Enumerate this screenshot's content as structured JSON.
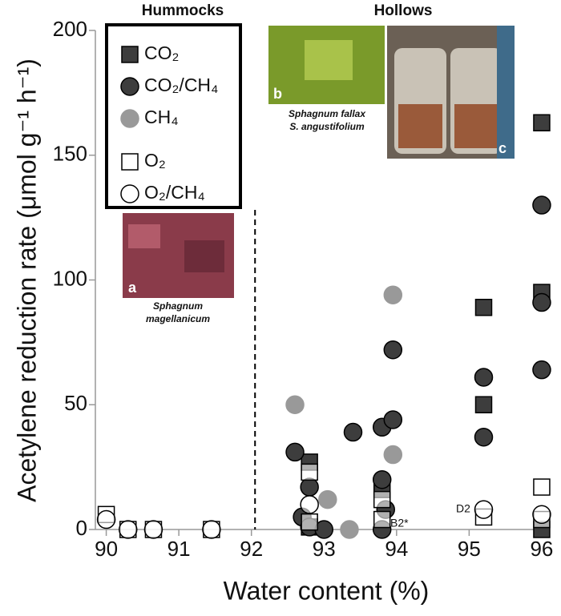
{
  "chart_data": {
    "type": "scatter",
    "xlabel": "Water content (%)",
    "ylabel": "Acetylene reduction rate (μmol g⁻¹ h⁻¹)",
    "xlim": [
      89.85,
      96.1
    ],
    "ylim": [
      0,
      200
    ],
    "xticks": [
      90,
      91,
      92,
      93,
      94,
      95,
      96
    ],
    "yticks": [
      0,
      50,
      100,
      150,
      200
    ],
    "divider_x": 92.05,
    "regions": [
      "Hummocks",
      "Hollows"
    ],
    "photos": [
      {
        "letter": "a",
        "caption": [
          "Sphagnum",
          "magellanicum"
        ]
      },
      {
        "letter": "b",
        "caption": [
          "Sphagnum fallax",
          "S. angustifolium"
        ]
      },
      {
        "letter": "c"
      }
    ],
    "point_labels": [
      "B2*",
      "D2"
    ],
    "series": [
      {
        "name": "CO₂",
        "marker": "square",
        "color": "#3d3d3d",
        "edgecolor": "#000",
        "x": [
          92.8,
          92.8,
          93.8,
          95.2,
          95.2,
          96.0,
          96.0,
          96.0
        ],
        "values": [
          27,
          1,
          16,
          89,
          50,
          163,
          95,
          0
        ]
      },
      {
        "name": "CO₂/CH₄",
        "marker": "circle",
        "color": "#3d3d3d",
        "edgecolor": "#000",
        "x": [
          92.6,
          92.7,
          92.8,
          92.8,
          93.0,
          93.4,
          93.8,
          93.8,
          93.8,
          93.85,
          93.95,
          93.95,
          95.2,
          95.2,
          96.0,
          96.0,
          96.0
        ],
        "values": [
          31,
          5,
          17,
          1,
          0,
          39,
          41,
          20,
          0,
          8,
          72,
          44,
          61,
          37,
          130,
          91,
          64
        ]
      },
      {
        "name": "CH₄",
        "marker": "circle",
        "color": "#999999",
        "edgecolor": "#999999",
        "x": [
          92.6,
          93.05,
          93.35,
          93.95,
          93.95
        ],
        "values": [
          50,
          12,
          0,
          94,
          30
        ]
      },
      {
        "name": "O₂",
        "marker": "square",
        "color": "#ffffff",
        "edgecolor": "#000",
        "x": [
          90.0,
          90.3,
          90.65,
          91.45,
          92.8,
          92.8,
          93.8,
          93.8,
          95.2,
          96.0,
          96.0
        ],
        "values": [
          6,
          0,
          0,
          0,
          23,
          3,
          12,
          4,
          5,
          17,
          4
        ]
      },
      {
        "name": "O₂/CH₄",
        "marker": "circle",
        "color": "#ffffff",
        "edgecolor": "#000",
        "x": [
          90.0,
          90.3,
          90.65,
          91.45,
          92.8,
          95.2,
          96.0
        ],
        "values": [
          4,
          0,
          0,
          0,
          10,
          8,
          6
        ]
      }
    ]
  }
}
